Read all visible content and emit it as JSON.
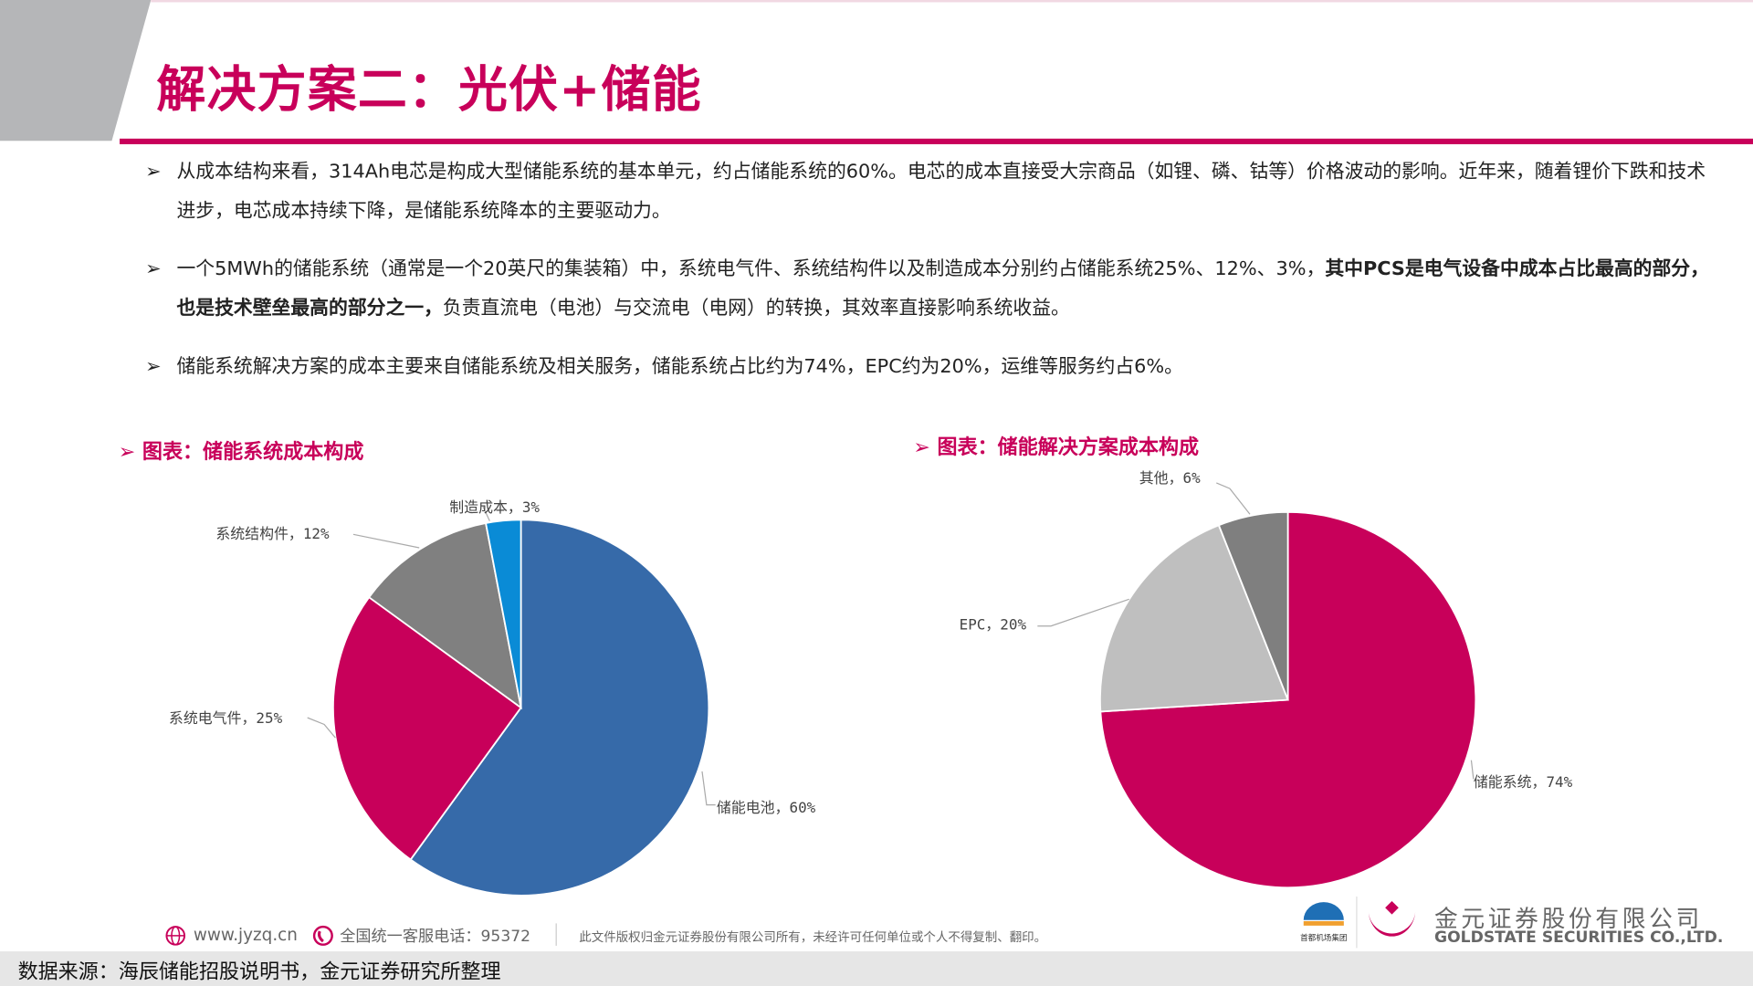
{
  "header": {
    "title": "解决方案二：光伏+储能"
  },
  "bullets": [
    {
      "marker": "➢",
      "text": "从成本结构来看，314Ah电芯是构成大型储能系统的基本单元，约占储能系统的60%。电芯的成本直接受大宗商品（如锂、磷、钴等）价格波动的影响。近年来，随着锂价下跌和技术进步，电芯成本持续下降，是储能系统降本的主要驱动力。"
    },
    {
      "marker": "➢",
      "text_before": "一个5MWh的储能系统（通常是一个20英尺的集装箱）中，系统电气件、系统结构件以及制造成本分别约占储能系统25%、12%、3%，",
      "text_bold": "其中PCS是电气设备中成本占比最高的部分，也是技术壁垒最高的部分之一，",
      "text_after": "负责直流电（电池）与交流电（电网）的转换，其效率直接影响系统收益。"
    },
    {
      "marker": "➢",
      "text": "储能系统解决方案的成本主要来自储能系统及相关服务，储能系统占比约为74%，EPC约为20%，运维等服务约占6%。"
    }
  ],
  "chart_data": [
    {
      "type": "pie",
      "title": "➢ 图表：储能系统成本构成",
      "categories": [
        "储能电池",
        "系统电气件",
        "系统结构件",
        "制造成本"
      ],
      "values": [
        60,
        25,
        12,
        3
      ],
      "labels": [
        "储能电池，60%",
        "系统电气件，25%",
        "系统结构件，12%",
        "制造成本，3%"
      ],
      "colors": [
        "#366AA9",
        "#C8005A",
        "#808080",
        "#0A8BD6"
      ],
      "start": "top",
      "direction": "clockwise"
    },
    {
      "type": "pie",
      "title": "➢ 图表：储能解决方案成本构成",
      "categories": [
        "储能系统",
        "EPC",
        "其他"
      ],
      "values": [
        74,
        20,
        6
      ],
      "labels": [
        "储能系统，74%",
        "EPC，20%",
        "其他，6%"
      ],
      "colors": [
        "#C8005A",
        "#BFBFBF",
        "#7F7F7F"
      ],
      "start": "top",
      "direction": "clockwise"
    }
  ],
  "footer": {
    "website": "www.jyzq.cn",
    "hotline": "全国统一客服电话：95372",
    "copyright": "此文件版权归金元证券股份有限公司所有，未经许可任何单位或个人不得复制、翻印。",
    "company_cn": "金元证券股份有限公司",
    "company_en": "GOLDSTATE SECURITIES CO.,LTD.",
    "partner_logo": "首都机场集团 Capital Airports Holdings",
    "source": "数据来源：海辰储能招股说明书，金元证券研究所整理"
  },
  "colors": {
    "accent": "#C8005A"
  }
}
